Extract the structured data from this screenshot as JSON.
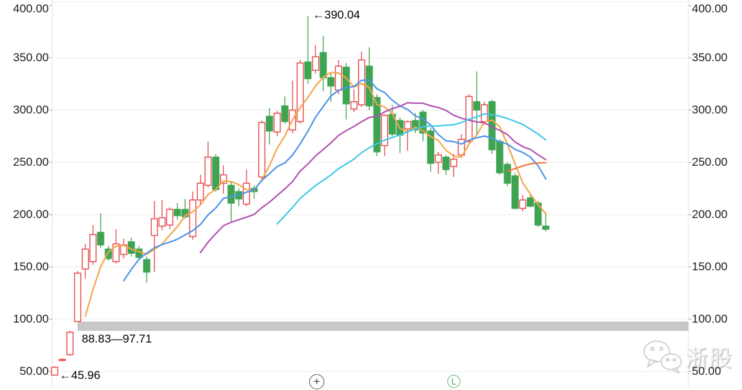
{
  "chart": {
    "watermark": {
      "text": "浙股"
    },
    "controls": {
      "zoom_glyph": "+",
      "log_glyph": "L"
    }
  },
  "chart_data": {
    "type": "candlestick",
    "title": "",
    "xlabel": "",
    "ylabel": "",
    "y_axis": {
      "side": "both",
      "tick_labels": [
        "400.00",
        "350.00",
        "300.00",
        "250.00",
        "200.00",
        "150.00",
        "100.00",
        "50.00"
      ],
      "range": [
        44,
        400
      ]
    },
    "x_axis": {
      "tick_labels": []
    },
    "grid": true,
    "up_color": "#e8494c",
    "down_color": "#3fa452",
    "up_style": "hollow",
    "down_style": "filled",
    "candles_ohlc": [
      [
        46.5,
        55,
        45.96,
        54
      ],
      [
        60.5,
        62.5,
        59.5,
        61.5
      ],
      [
        66,
        88.83,
        65,
        87.5
      ],
      [
        97.71,
        146,
        97.71,
        144
      ],
      [
        148,
        172,
        139,
        167
      ],
      [
        155,
        190,
        152,
        181
      ],
      [
        183,
        201,
        168,
        171
      ],
      [
        167,
        170,
        156,
        158
      ],
      [
        155,
        186,
        153,
        172
      ],
      [
        162,
        177,
        158,
        171
      ],
      [
        174,
        178,
        160,
        163
      ],
      [
        167,
        170,
        157,
        159
      ],
      [
        157,
        160,
        135,
        145
      ],
      [
        180,
        213,
        145,
        196
      ],
      [
        189,
        214,
        185,
        197
      ],
      [
        190,
        207,
        186,
        205
      ],
      [
        205,
        211,
        195,
        199
      ],
      [
        205,
        215,
        196,
        198
      ],
      [
        179,
        222,
        176,
        214
      ],
      [
        214,
        238,
        210,
        230
      ],
      [
        228,
        270,
        226,
        255
      ],
      [
        255,
        258,
        222,
        224
      ],
      [
        230,
        247,
        220,
        238
      ],
      [
        228,
        232,
        192,
        211
      ],
      [
        222,
        225,
        208,
        215
      ],
      [
        210,
        243,
        208,
        230
      ],
      [
        225,
        228,
        215,
        222
      ],
      [
        236,
        290,
        233,
        288
      ],
      [
        294,
        302,
        267,
        280
      ],
      [
        279,
        299,
        275,
        297
      ],
      [
        304,
        313,
        287,
        289
      ],
      [
        281,
        328,
        278,
        300
      ],
      [
        289,
        348,
        287,
        345
      ],
      [
        346,
        390.04,
        325,
        330
      ],
      [
        338,
        362,
        335,
        351
      ],
      [
        355,
        371,
        318,
        331
      ],
      [
        331,
        335,
        308,
        323
      ],
      [
        319,
        348,
        315,
        342
      ],
      [
        341,
        345,
        291,
        306
      ],
      [
        301,
        320,
        298,
        308
      ],
      [
        305,
        356,
        303,
        348
      ],
      [
        342,
        360,
        300,
        304
      ],
      [
        312,
        315,
        256,
        260
      ],
      [
        266,
        296,
        256,
        295
      ],
      [
        296,
        305,
        275,
        277
      ],
      [
        290,
        293,
        259,
        276
      ],
      [
        282,
        290,
        261,
        289
      ],
      [
        290,
        297,
        278,
        281
      ],
      [
        298,
        300,
        270,
        278
      ],
      [
        280,
        283,
        241,
        249
      ],
      [
        250,
        260,
        239,
        257
      ],
      [
        255,
        257,
        238,
        243
      ],
      [
        246,
        258,
        236,
        253
      ],
      [
        257,
        277,
        255,
        272
      ],
      [
        270,
        315,
        268,
        313
      ],
      [
        308,
        337,
        276,
        300
      ],
      [
        289,
        308,
        286,
        305
      ],
      [
        308,
        310,
        258,
        262
      ],
      [
        270,
        272,
        238,
        240
      ],
      [
        248,
        250,
        227,
        230
      ],
      [
        237,
        240,
        205,
        206
      ],
      [
        206,
        219,
        203,
        214
      ],
      [
        216,
        220,
        207,
        208
      ],
      [
        211,
        213,
        188,
        190
      ],
      [
        189,
        202,
        184,
        186
      ]
    ],
    "moving_averages": [
      {
        "period": 5,
        "color": "#f6a448"
      },
      {
        "period": 10,
        "color": "#4b95e8"
      },
      {
        "period": 20,
        "color": "#b351b3"
      },
      {
        "period": 30,
        "color": "#3fc8e8"
      },
      {
        "period": 60,
        "color": "#f3763b"
      }
    ],
    "gap_band": {
      "low": 88.83,
      "high": 97.71,
      "start_index": 3,
      "color": "#c7c7c7"
    },
    "annotations": [
      {
        "text": "←390.04",
        "value": 390.04,
        "index": 33,
        "anchor": "high"
      },
      {
        "text": "88.83—97.71",
        "value": 88.83,
        "index": 3,
        "anchor": "gap-band"
      },
      {
        "text": "←45.96",
        "value": 45.96,
        "index": 0,
        "anchor": "low"
      }
    ]
  }
}
